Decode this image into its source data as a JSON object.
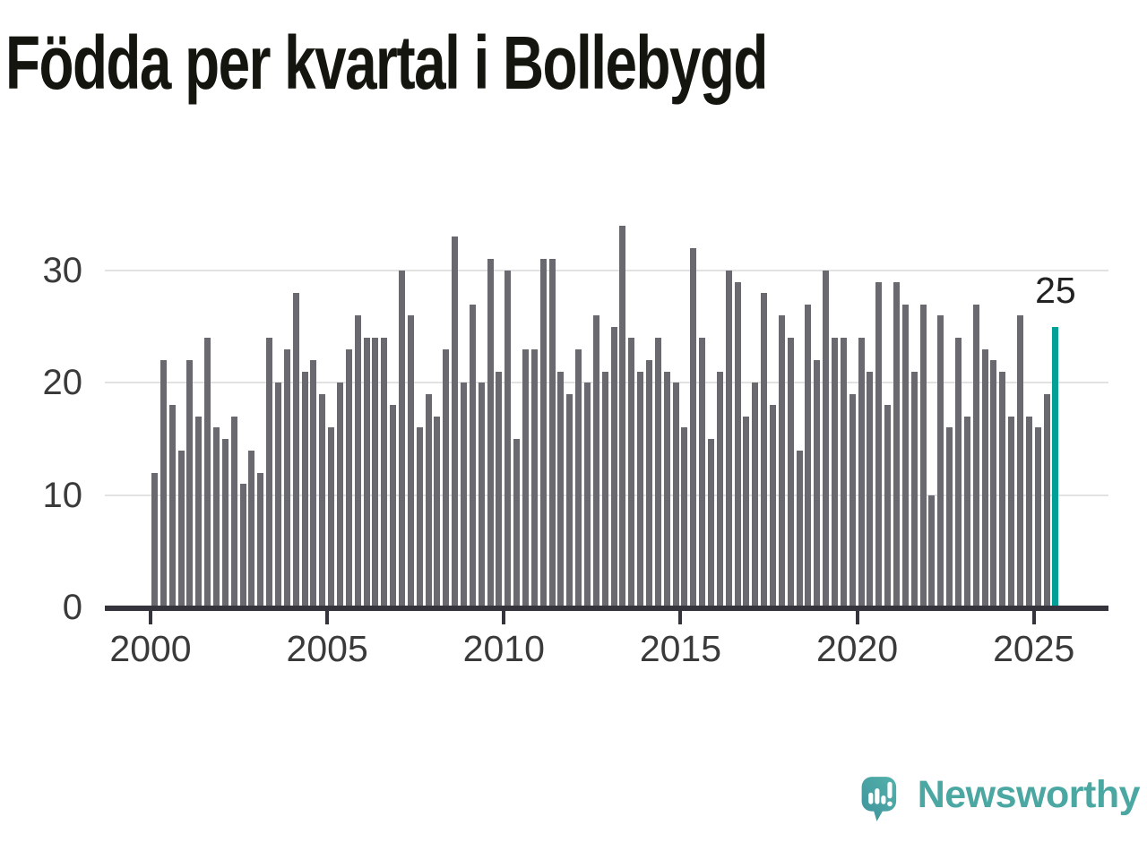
{
  "title": "Födda per kvartal i Bollebygd",
  "chart_data": {
    "type": "bar",
    "title": "Födda per kvartal i Bollebygd",
    "x_start": "2000 Q1",
    "x_end": "2025 Q3",
    "values": [
      12,
      22,
      18,
      14,
      22,
      17,
      24,
      16,
      15,
      17,
      11,
      14,
      12,
      24,
      20,
      23,
      28,
      21,
      22,
      19,
      16,
      20,
      23,
      26,
      24,
      24,
      24,
      18,
      30,
      26,
      16,
      19,
      17,
      23,
      33,
      20,
      27,
      20,
      31,
      21,
      30,
      15,
      23,
      23,
      31,
      31,
      21,
      19,
      23,
      20,
      26,
      21,
      25,
      34,
      24,
      21,
      22,
      24,
      21,
      20,
      16,
      32,
      24,
      15,
      21,
      30,
      29,
      17,
      20,
      28,
      18,
      26,
      24,
      14,
      27,
      22,
      30,
      24,
      24,
      19,
      24,
      21,
      29,
      18,
      29,
      27,
      21,
      27,
      10,
      26,
      16,
      24,
      17,
      27,
      23,
      22,
      21,
      17,
      26,
      17,
      16,
      19,
      25
    ],
    "highlight": {
      "quarter": "2025 Q3",
      "value": 25,
      "label": "25",
      "color": "#00a096"
    },
    "bar_color": "#6a6970",
    "x_tick_labels": [
      "2000",
      "2005",
      "2010",
      "2015",
      "2020",
      "2025"
    ],
    "y_tick_labels": [
      "0",
      "10",
      "20",
      "30"
    ],
    "y_ticks": [
      0,
      10,
      20,
      30
    ],
    "ylim": [
      0,
      36
    ],
    "grid": "horizontal",
    "legend": "none"
  },
  "logo": {
    "wordmark": "Newsworthy",
    "icon": "newsworthy-speech-bubble-bar-chart-icon",
    "color": "#4aa7a2"
  },
  "colors": {
    "bar": "#6a6970",
    "highlight": "#00a096",
    "axis": "#35343c",
    "grid": "#e2e2e2",
    "tick_text": "#3a3a3a",
    "title_text": "#15150f",
    "background": "#ffffff"
  }
}
